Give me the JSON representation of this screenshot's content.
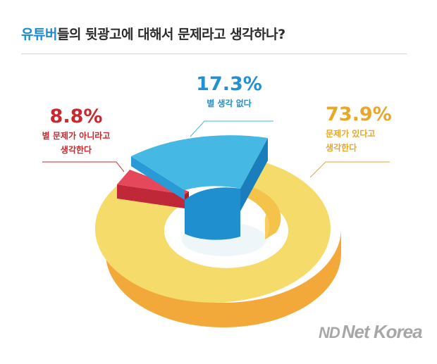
{
  "title": {
    "highlight": "유튜버",
    "rest": "들의 뒷광고에 대해서 문제라고 생각하나?"
  },
  "chart_data": {
    "type": "pie",
    "style": "3d-donut",
    "title": "유튜버들의 뒷광고에 대해서 문제라고 생각하나?",
    "slices": [
      {
        "label": "문제가 있다고 생각한다",
        "value": 73.9,
        "display": "73.9%",
        "color": "#f5dc6a"
      },
      {
        "label": "별 생각 없다",
        "value": 17.3,
        "display": "17.3%",
        "color": "#45b9e3"
      },
      {
        "label": "별 문제가 아니라고 생각한다",
        "value": 8.8,
        "display": "8.8%",
        "color": "#e5485a"
      }
    ],
    "labels": {
      "yellow": {
        "pct": "73.9%",
        "line1": "문제가 있다고",
        "line2": "생각한다"
      },
      "blue": {
        "pct": "17.3%",
        "line1": "별 생각 없다"
      },
      "red": {
        "pct": "8.8%",
        "line1": "별 문제가 아니라고",
        "line2": "생각한다"
      }
    }
  },
  "watermark": {
    "mark": "ND",
    "text": "Net Korea"
  }
}
